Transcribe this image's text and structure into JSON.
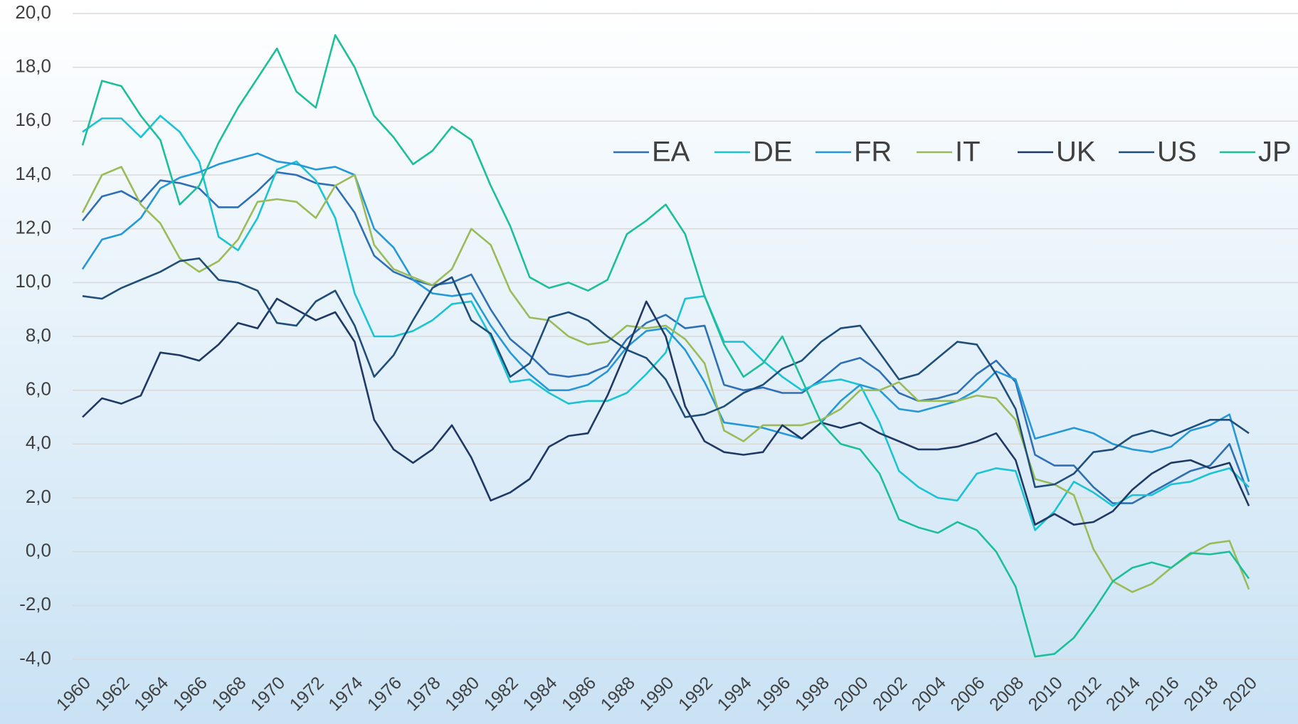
{
  "chart_data": {
    "type": "line",
    "x": [
      1960,
      1961,
      1962,
      1963,
      1964,
      1965,
      1966,
      1967,
      1968,
      1969,
      1970,
      1971,
      1972,
      1973,
      1974,
      1975,
      1976,
      1977,
      1978,
      1979,
      1980,
      1981,
      1982,
      1983,
      1984,
      1985,
      1986,
      1987,
      1988,
      1989,
      1990,
      1991,
      1992,
      1993,
      1994,
      1995,
      1996,
      1997,
      1998,
      1999,
      2000,
      2001,
      2002,
      2003,
      2004,
      2005,
      2006,
      2007,
      2008,
      2009,
      2010,
      2011,
      2012,
      2013,
      2014,
      2015,
      2016,
      2017,
      2018,
      2019,
      2020
    ],
    "xlim": [
      1960,
      2020
    ],
    "xticks": [
      1960,
      1962,
      1964,
      1966,
      1968,
      1970,
      1972,
      1974,
      1976,
      1978,
      1980,
      1982,
      1984,
      1986,
      1988,
      1990,
      1992,
      1994,
      1996,
      1998,
      2000,
      2002,
      2004,
      2006,
      2008,
      2010,
      2012,
      2014,
      2016,
      2018,
      2020
    ],
    "ylim": [
      -4,
      20
    ],
    "yticks": [
      {
        "value": -4,
        "label": "-4,0"
      },
      {
        "value": -2,
        "label": "-2,0"
      },
      {
        "value": 0,
        "label": "0,0"
      },
      {
        "value": 2,
        "label": "2,0"
      },
      {
        "value": 4,
        "label": "4,0"
      },
      {
        "value": 6,
        "label": "6,0"
      },
      {
        "value": 8,
        "label": "8,0"
      },
      {
        "value": 10,
        "label": "10,0"
      },
      {
        "value": 12,
        "label": "12,0"
      },
      {
        "value": 14,
        "label": "14,0"
      },
      {
        "value": 16,
        "label": "16,0"
      },
      {
        "value": 18,
        "label": "18,0"
      },
      {
        "value": 20,
        "label": "20,0"
      }
    ],
    "grid": true,
    "legend": "top-right",
    "series": [
      {
        "name": "EA",
        "color": "#2e6fb5",
        "values": [
          12.3,
          13.2,
          13.4,
          13.0,
          13.8,
          13.7,
          13.5,
          12.8,
          12.8,
          13.4,
          14.1,
          14.0,
          13.7,
          13.6,
          12.6,
          11.0,
          10.4,
          10.1,
          9.9,
          10.0,
          10.3,
          9.0,
          7.9,
          7.3,
          6.6,
          6.5,
          6.6,
          6.9,
          7.9,
          8.5,
          8.8,
          8.3,
          8.4,
          6.2,
          6.0,
          6.1,
          5.9,
          5.9,
          6.4,
          7.0,
          7.2,
          6.7,
          5.9,
          5.6,
          5.7,
          5.9,
          6.6,
          7.1,
          6.3,
          3.6,
          3.2,
          3.2,
          2.4,
          1.8,
          1.8,
          2.2,
          2.6,
          3.0,
          3.2,
          4.0,
          2.1
        ]
      },
      {
        "name": "DE",
        "color": "#1bc3d4",
        "values": [
          15.6,
          16.1,
          16.1,
          15.4,
          16.2,
          15.6,
          14.5,
          11.7,
          11.2,
          12.4,
          14.2,
          14.5,
          13.8,
          12.4,
          9.6,
          8.0,
          8.0,
          8.2,
          8.6,
          9.2,
          9.3,
          8.0,
          6.3,
          6.4,
          5.9,
          5.5,
          5.6,
          5.6,
          5.9,
          6.6,
          7.4,
          9.4,
          9.5,
          7.8,
          7.8,
          7.1,
          6.5,
          6.0,
          6.3,
          6.4,
          6.2,
          4.8,
          3.0,
          2.4,
          2.0,
          1.9,
          2.9,
          3.1,
          3.0,
          0.8,
          1.5,
          2.6,
          2.2,
          1.7,
          2.1,
          2.1,
          2.5,
          2.6,
          2.9,
          3.1,
          2.4
        ]
      },
      {
        "name": "FR",
        "color": "#2498d8",
        "values": [
          10.5,
          11.6,
          11.8,
          12.4,
          13.5,
          13.9,
          14.1,
          14.4,
          14.6,
          14.8,
          14.5,
          14.4,
          14.2,
          14.3,
          14.0,
          12.0,
          11.3,
          10.1,
          9.6,
          9.5,
          9.6,
          8.4,
          7.4,
          6.6,
          6.0,
          6.0,
          6.2,
          6.7,
          7.6,
          8.2,
          8.3,
          7.5,
          6.3,
          4.8,
          4.7,
          4.6,
          4.4,
          4.2,
          4.8,
          5.6,
          6.2,
          6.0,
          5.3,
          5.2,
          5.4,
          5.6,
          6.0,
          6.7,
          6.4,
          4.2,
          4.4,
          4.6,
          4.4,
          4.0,
          3.8,
          3.7,
          3.9,
          4.5,
          4.7,
          5.1,
          2.6
        ]
      },
      {
        "name": "IT",
        "color": "#9bbb59",
        "values": [
          12.6,
          14.0,
          14.3,
          12.9,
          12.2,
          10.9,
          10.4,
          10.8,
          11.6,
          13.0,
          13.1,
          13.0,
          12.4,
          13.6,
          14.0,
          11.4,
          10.5,
          10.2,
          9.9,
          10.5,
          12.0,
          11.4,
          9.7,
          8.7,
          8.6,
          8.0,
          7.7,
          7.8,
          8.4,
          8.3,
          8.4,
          7.9,
          7.0,
          4.5,
          4.1,
          4.7,
          4.7,
          4.7,
          4.9,
          5.3,
          6.0,
          6.0,
          6.3,
          5.6,
          5.6,
          5.6,
          5.8,
          5.7,
          4.9,
          2.7,
          2.5,
          2.1,
          0.1,
          -1.1,
          -1.5,
          -1.2,
          -0.6,
          -0.1,
          0.3,
          0.4,
          -1.4
        ]
      },
      {
        "name": "UK",
        "color": "#1f3864",
        "values": [
          5.0,
          5.7,
          5.5,
          5.8,
          7.4,
          7.3,
          7.1,
          7.7,
          8.5,
          8.3,
          9.4,
          9.0,
          8.6,
          8.9,
          7.8,
          4.9,
          3.8,
          3.3,
          3.8,
          4.7,
          3.5,
          1.9,
          2.2,
          2.7,
          3.9,
          4.3,
          4.4,
          5.8,
          7.5,
          9.3,
          8.0,
          5.4,
          4.1,
          3.7,
          3.6,
          3.7,
          4.7,
          4.2,
          4.8,
          4.6,
          4.8,
          4.4,
          4.1,
          3.8,
          3.8,
          3.9,
          4.1,
          4.4,
          3.4,
          1.0,
          1.4,
          1.0,
          1.1,
          1.5,
          2.3,
          2.9,
          3.3,
          3.4,
          3.1,
          3.3,
          1.7
        ]
      },
      {
        "name": "US",
        "color": "#1f4e79",
        "values": [
          9.5,
          9.4,
          9.8,
          10.1,
          10.4,
          10.8,
          10.9,
          10.1,
          10.0,
          9.7,
          8.5,
          8.4,
          9.3,
          9.7,
          8.4,
          6.5,
          7.3,
          8.6,
          9.8,
          10.2,
          8.6,
          8.1,
          6.5,
          7.0,
          8.7,
          8.9,
          8.6,
          8.0,
          7.5,
          7.2,
          6.4,
          5.0,
          5.1,
          5.4,
          5.9,
          6.2,
          6.8,
          7.1,
          7.8,
          8.3,
          8.4,
          7.4,
          6.4,
          6.6,
          7.2,
          7.8,
          7.7,
          6.6,
          5.3,
          2.4,
          2.5,
          2.9,
          3.7,
          3.8,
          4.3,
          4.5,
          4.3,
          4.6,
          4.9,
          4.9,
          4.4
        ]
      },
      {
        "name": "JP",
        "color": "#1dbf9a",
        "values": [
          15.1,
          17.5,
          17.3,
          16.2,
          15.3,
          12.9,
          13.6,
          15.2,
          16.5,
          17.6,
          18.7,
          17.1,
          16.5,
          19.2,
          18.0,
          16.2,
          15.4,
          14.4,
          14.9,
          15.8,
          15.3,
          13.6,
          12.1,
          10.2,
          9.8,
          10.0,
          9.7,
          10.1,
          11.8,
          12.3,
          12.9,
          11.8,
          9.5,
          7.7,
          6.5,
          7.0,
          8.0,
          6.4,
          4.8,
          4.0,
          3.8,
          2.9,
          1.2,
          0.9,
          0.7,
          1.1,
          0.8,
          0.0,
          -1.3,
          -3.9,
          -3.8,
          -3.2,
          -2.2,
          -1.1,
          -0.6,
          -0.4,
          -0.6,
          -0.05,
          -0.1,
          0.0,
          -1.0
        ]
      }
    ]
  }
}
